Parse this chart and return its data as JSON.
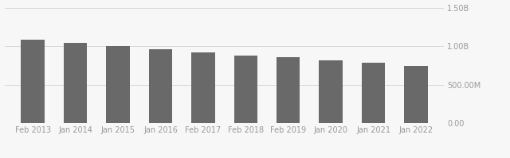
{
  "categories": [
    "Feb 2013",
    "Jan 2014",
    "Jan 2015",
    "Jan 2016",
    "Feb 2017",
    "Feb 2018",
    "Feb 2019",
    "Jan 2020",
    "Jan 2021",
    "Jan 2022"
  ],
  "values": [
    1090000000,
    1045000000,
    1000000000,
    960000000,
    925000000,
    885000000,
    855000000,
    820000000,
    785000000,
    745000000
  ],
  "bar_color": "#696969",
  "background_color": "#f7f7f7",
  "ylim": [
    0,
    1500000000
  ],
  "yticks": [
    0,
    500000000,
    1000000000,
    1500000000
  ],
  "ytick_labels": [
    "0.00",
    "500.00M",
    "1.00B",
    "1.50B"
  ],
  "grid_color": "#d8d8d8",
  "label_color": "#999999",
  "bar_width": 0.55
}
